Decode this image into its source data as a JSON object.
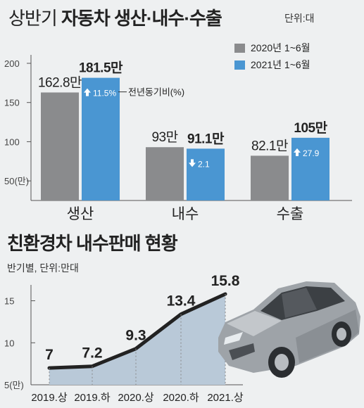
{
  "top": {
    "title_light": "상반기",
    "title_bold": "자동차 생산·내수·수출",
    "unit": "단위:대",
    "legend": [
      {
        "label": "2020년 1~6월",
        "color": "#8a8b8d"
      },
      {
        "label": "2021년 1~6월",
        "color": "#4a96d2"
      }
    ],
    "yoy_label": "전년동기비(%)"
  },
  "bottom": {
    "title": "친환경차 내수판매 현황",
    "subtitle": "반기별, 단위:만대"
  },
  "chart_data": [
    {
      "type": "bar",
      "categories": [
        "생산",
        "내수",
        "수출"
      ],
      "series": [
        {
          "name": "2020년 1~6월",
          "values": [
            162.8,
            93,
            82.1
          ],
          "labels": [
            "162.8만",
            "93만",
            "82.1만"
          ],
          "color": "#8a8b8d"
        },
        {
          "name": "2021년 1~6월",
          "values": [
            181.5,
            91.1,
            105
          ],
          "labels": [
            "181.5만",
            "91.1만",
            "105만"
          ],
          "color": "#4a96d2"
        }
      ],
      "yoy": [
        {
          "direction": "up",
          "value": "11.5%"
        },
        {
          "direction": "down",
          "value": "2.1"
        },
        {
          "direction": "up",
          "value": "27.9"
        }
      ],
      "yticks": [
        "200",
        "150",
        "100",
        "50(만)"
      ],
      "ylim": [
        25,
        200
      ]
    },
    {
      "type": "area",
      "categories": [
        "2019.상",
        "2019.하",
        "2020.상",
        "2020.하",
        "2021.상"
      ],
      "values": [
        7,
        7.2,
        9.3,
        13.4,
        15.8
      ],
      "labels": [
        "7",
        "7.2",
        "9.3",
        "13.4",
        "15.8"
      ],
      "yticks": [
        "15",
        "10",
        "5(만)"
      ],
      "ylim": [
        5,
        15.8
      ]
    }
  ],
  "car_icon": "car-icon"
}
